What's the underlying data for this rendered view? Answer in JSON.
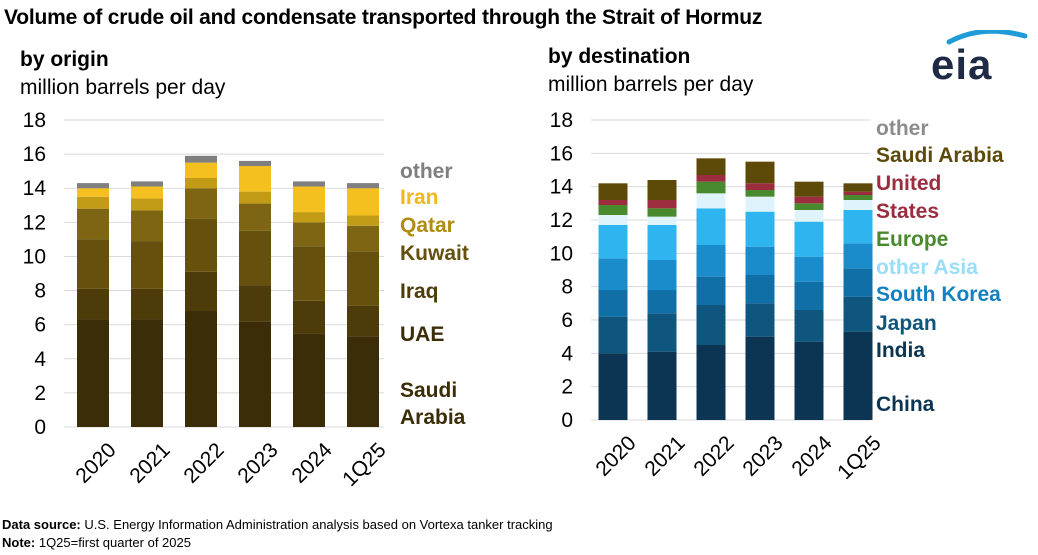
{
  "title": "Volume of crude oil and condensate transported through the Strait of Hormuz",
  "logo_text": "eia",
  "footer": {
    "source_label": "Data source:",
    "source_text": "U.S. Energy Information Administration analysis based on Vortexa tanker tracking",
    "note_label": "Note:",
    "note_text": "1Q25=first quarter of 2025"
  },
  "chart_data": [
    {
      "type": "bar",
      "stacked": true,
      "title": "by origin",
      "ylabel": "million barrels per day",
      "ylim": [
        0,
        18
      ],
      "yticks": [
        "0",
        "2",
        "4",
        "6",
        "8",
        "10",
        "12",
        "14",
        "16",
        "18"
      ],
      "categories": [
        "2020",
        "2021",
        "2022",
        "2023",
        "2024",
        "1Q25"
      ],
      "series": [
        {
          "name": "Saudi Arabia",
          "label_lines": [
            "Saudi",
            "Arabia"
          ],
          "color": "#3a2d08",
          "label_color": "#3a2d08",
          "values": [
            6.3,
            6.3,
            6.8,
            6.2,
            5.5,
            5.3
          ]
        },
        {
          "name": "UAE",
          "label_lines": [
            "UAE"
          ],
          "color": "#4d3c0a",
          "label_color": "#3a2d08",
          "values": [
            1.8,
            1.8,
            2.3,
            2.1,
            1.9,
            1.8
          ]
        },
        {
          "name": "Iraq",
          "label_lines": [
            "Iraq"
          ],
          "color": "#65500e",
          "label_color": "#4d3c0a",
          "values": [
            2.9,
            2.8,
            3.1,
            3.2,
            3.2,
            3.2
          ]
        },
        {
          "name": "Kuwait",
          "label_lines": [
            "Kuwait"
          ],
          "color": "#7d6514",
          "label_color": "#65500e",
          "values": [
            1.8,
            1.8,
            1.8,
            1.6,
            1.4,
            1.5
          ]
        },
        {
          "name": "Qatar",
          "label_lines": [
            "Qatar"
          ],
          "color": "#c29c16",
          "label_color": "#b08c10",
          "values": [
            0.7,
            0.7,
            0.6,
            0.7,
            0.6,
            0.6
          ]
        },
        {
          "name": "Iran",
          "label_lines": [
            "Iran"
          ],
          "color": "#f4c01f",
          "label_color": "#f0b81a",
          "values": [
            0.5,
            0.7,
            0.9,
            1.5,
            1.5,
            1.6
          ]
        },
        {
          "name": "other",
          "label_lines": [
            "other"
          ],
          "color": "#7f7f7f",
          "label_color": "#7f7f7f",
          "values": [
            0.3,
            0.3,
            0.4,
            0.3,
            0.3,
            0.3
          ]
        }
      ]
    },
    {
      "type": "bar",
      "stacked": true,
      "title": "by destination",
      "ylabel": "million barrels per day",
      "ylim": [
        0,
        18
      ],
      "yticks": [
        "0",
        "2",
        "4",
        "6",
        "8",
        "10",
        "12",
        "14",
        "16",
        "18"
      ],
      "categories": [
        "2020",
        "2021",
        "2022",
        "2023",
        "2024",
        "1Q25"
      ],
      "series": [
        {
          "name": "China",
          "label_lines": [
            "China"
          ],
          "color": "#0b3553",
          "label_color": "#0b3553",
          "values": [
            4.0,
            4.1,
            4.5,
            5.0,
            4.7,
            5.3
          ]
        },
        {
          "name": "India",
          "label_lines": [
            "India"
          ],
          "color": "#0e567e",
          "label_color": "#0b3553",
          "values": [
            2.2,
            2.3,
            2.4,
            2.0,
            1.9,
            2.1
          ]
        },
        {
          "name": "Japan",
          "label_lines": [
            "Japan"
          ],
          "color": "#0f6fa6",
          "label_color": "#0e567e",
          "values": [
            1.6,
            1.4,
            1.7,
            1.7,
            1.7,
            1.7
          ]
        },
        {
          "name": "South Korea",
          "label_lines": [
            "South Korea"
          ],
          "color": "#1a8ccc",
          "label_color": "#1480c0",
          "values": [
            1.9,
            1.8,
            1.9,
            1.7,
            1.5,
            1.5
          ]
        },
        {
          "name": "other Asia",
          "label_lines": [
            "other Asia"
          ],
          "color": "#2eb5f0",
          "label_color": "#99ddf8",
          "values": [
            2.0,
            2.1,
            2.2,
            2.1,
            2.1,
            2.0
          ]
        },
        {
          "name": "Europe",
          "label_lines": [
            "Europe"
          ],
          "color": "#dff3fd",
          "label_color": "#4a8a2f",
          "values": [
            0.6,
            0.5,
            0.9,
            0.9,
            0.7,
            0.6
          ]
        },
        {
          "name": "United States",
          "label_lines": [
            "United",
            "States"
          ],
          "color": "#4a8a2f",
          "label_color": "#9b2d3f",
          "values": [
            0.6,
            0.5,
            0.7,
            0.4,
            0.4,
            0.3
          ]
        },
        {
          "name": "Saudi Arabia",
          "label_lines": [
            "Saudi Arabia"
          ],
          "color": "#9b2d3f",
          "label_color": "#5e4a08",
          "values": [
            0.3,
            0.5,
            0.4,
            0.4,
            0.4,
            0.2
          ]
        },
        {
          "name": "other",
          "label_lines": [
            "other"
          ],
          "color": "#5e4a08",
          "label_color": "#8c8c8c",
          "values": [
            1.0,
            1.2,
            1.0,
            1.3,
            0.9,
            0.5
          ]
        }
      ]
    }
  ]
}
